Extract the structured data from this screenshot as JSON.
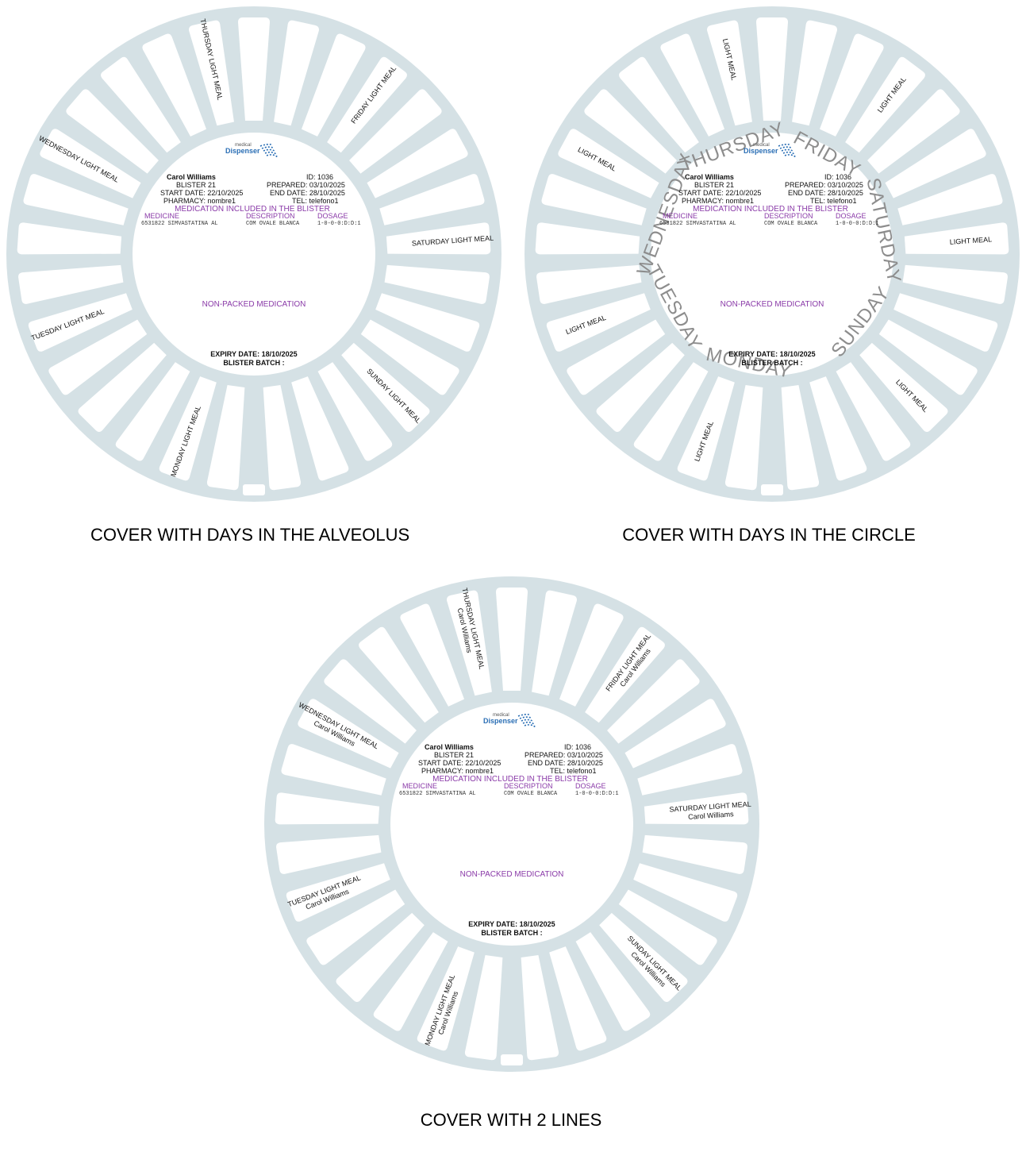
{
  "colors": {
    "disc": "#d5e1e5",
    "pill": "#ffffff",
    "purple": "#8a3aa8",
    "day_text": "#8d8d8d",
    "logo_blue": "#2b6fb5"
  },
  "icons": {
    "logo": "medical-dispenser-logo",
    "swirl": "logo-swirl-icon"
  },
  "logo": {
    "small": "medical",
    "big": "Dispenser"
  },
  "patient": {
    "name": "Carol Williams",
    "id_label": "ID:",
    "id": "1036",
    "blister_label": "BLISTER",
    "blister": "21",
    "prepared_label": "PREPARED:",
    "prepared": "03/10/2025",
    "start_label": "START DATE:",
    "start": "22/10/2025",
    "end_label": "END DATE:",
    "end": "28/10/2025",
    "pharmacy_label": "PHARMACY:",
    "pharmacy": "nombre1",
    "tel_label": "TEL:",
    "tel": "telefono1"
  },
  "medication": {
    "title": "MEDICATION INCLUDED IN THE BLISTER",
    "headers": [
      "MEDICINE",
      "DESCRIPTION",
      "DOSAGE"
    ],
    "row": {
      "medicine": "6531822 SIMVASTATINA AL",
      "description": "COM OVALE BLANCA",
      "dosage": "1-0-0-0:D:D:1"
    },
    "non_packed": "NON-PACKED MEDICATION",
    "expiry": "EXPIRY DATE: 18/10/2025",
    "batch": "BLISTER BATCH :"
  },
  "covers": [
    {
      "caption": "COVER WITH DAYS IN THE ALVEOLUS",
      "pill_labels": [
        "MONDAY LIGHT MEAL",
        "TUESDAY LIGHT MEAL",
        "WEDNESDAY LIGHT MEAL",
        "THURSDAY LIGHT MEAL",
        "FRIDAY LIGHT MEAL",
        "SATURDAY LIGHT MEAL",
        "SUNDAY LIGHT MEAL"
      ],
      "second_line": "",
      "circle_days": []
    },
    {
      "caption": "COVER WITH DAYS IN THE CIRCLE",
      "pill_labels": [
        "LIGHT MEAL",
        "LIGHT MEAL",
        "LIGHT MEAL",
        "LIGHT MEAL",
        "LIGHT MEAL",
        "LIGHT MEAL",
        "LIGHT MEAL"
      ],
      "second_line": "",
      "circle_days": [
        "MONDAY",
        "TUESDAY",
        "WEDNESDAY",
        "THURSDAY",
        "FRIDAY",
        "SATURDAY",
        "SUNDAY"
      ]
    },
    {
      "caption": "COVER WITH 2 LINES",
      "pill_labels": [
        "MONDAY LIGHT MEAL",
        "TUESDAY LIGHT MEAL",
        "WEDNESDAY LIGHT MEAL",
        "THURSDAY LIGHT MEAL",
        "FRIDAY LIGHT MEAL",
        "SATURDAY LIGHT MEAL",
        "SUNDAY LIGHT MEAL"
      ],
      "second_line": "Carol Williams",
      "circle_days": []
    }
  ]
}
